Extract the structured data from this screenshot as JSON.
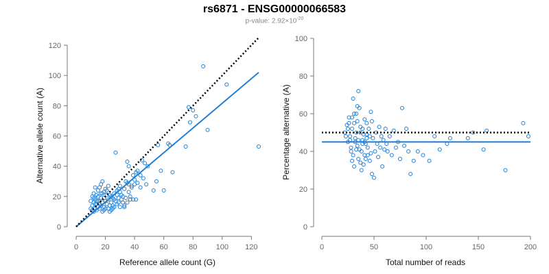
{
  "title": "rs6871 - ENSG00000066583",
  "subtitle": {
    "prefix": "p-value: 2.92×10",
    "exponent": "-20"
  },
  "chart_data": [
    {
      "type": "scatter",
      "xlabel": "Reference allele count (G)",
      "ylabel": "Alternative allele count (A)",
      "xlim": [
        0,
        125
      ],
      "ylim": [
        0,
        120
      ],
      "xticks": [
        0,
        20,
        40,
        60,
        80,
        100,
        120
      ],
      "yticks": [
        0,
        20,
        40,
        60,
        80,
        100,
        120
      ],
      "point_color": "#1f7fd6",
      "fit_line": {
        "x": [
          0,
          125
        ],
        "y": [
          0,
          102
        ],
        "color": "#1f7fd6"
      },
      "reference_line": {
        "x": [
          0,
          125
        ],
        "y": [
          0,
          125
        ],
        "style": "dotted",
        "color": "#000000"
      },
      "points": [
        [
          10,
          12
        ],
        [
          11,
          14
        ],
        [
          12,
          10
        ],
        [
          12,
          16
        ],
        [
          13,
          12
        ],
        [
          13,
          18
        ],
        [
          14,
          11
        ],
        [
          14,
          15
        ],
        [
          15,
          13
        ],
        [
          15,
          20
        ],
        [
          16,
          12
        ],
        [
          16,
          17
        ],
        [
          17,
          14
        ],
        [
          17,
          22
        ],
        [
          18,
          10
        ],
        [
          18,
          16
        ],
        [
          19,
          13
        ],
        [
          19,
          19
        ],
        [
          20,
          12
        ],
        [
          20,
          17
        ],
        [
          21,
          15
        ],
        [
          21,
          24
        ],
        [
          22,
          12
        ],
        [
          22,
          18
        ],
        [
          23,
          14
        ],
        [
          23,
          21
        ],
        [
          24,
          16
        ],
        [
          24,
          11
        ],
        [
          25,
          19
        ],
        [
          25,
          14
        ],
        [
          26,
          22
        ],
        [
          26,
          13
        ],
        [
          27,
          17
        ],
        [
          28,
          24
        ],
        [
          28,
          15
        ],
        [
          29,
          19
        ],
        [
          30,
          27
        ],
        [
          30,
          13
        ],
        [
          31,
          21
        ],
        [
          32,
          16
        ],
        [
          33,
          25
        ],
        [
          34,
          19
        ],
        [
          35,
          29
        ],
        [
          36,
          23
        ],
        [
          37,
          18
        ],
        [
          38,
          26
        ],
        [
          39,
          34
        ],
        [
          40,
          31
        ],
        [
          41,
          36
        ],
        [
          42,
          29
        ],
        [
          44,
          26
        ],
        [
          46,
          32
        ],
        [
          48,
          28
        ],
        [
          53,
          24
        ],
        [
          55,
          30
        ],
        [
          56,
          54
        ],
        [
          58,
          37
        ],
        [
          60,
          24
        ],
        [
          63,
          55
        ],
        [
          64,
          54
        ],
        [
          66,
          36
        ],
        [
          75,
          53
        ],
        [
          77,
          79
        ],
        [
          78,
          69
        ],
        [
          80,
          77
        ],
        [
          82,
          73
        ],
        [
          87,
          106
        ],
        [
          90,
          64
        ],
        [
          103,
          94
        ],
        [
          125,
          53
        ],
        [
          10,
          17
        ],
        [
          11,
          20
        ],
        [
          12,
          22
        ],
        [
          13,
          26
        ],
        [
          14,
          21
        ],
        [
          15,
          24
        ],
        [
          16,
          26
        ],
        [
          17,
          28
        ],
        [
          18,
          30
        ],
        [
          12,
          19
        ],
        [
          14,
          17
        ],
        [
          16,
          15
        ],
        [
          18,
          22
        ],
        [
          20,
          25
        ],
        [
          22,
          27
        ],
        [
          24,
          20
        ],
        [
          26,
          18
        ],
        [
          28,
          21
        ],
        [
          30,
          23
        ],
        [
          32,
          20
        ],
        [
          34,
          30
        ],
        [
          36,
          28
        ],
        [
          38,
          27
        ],
        [
          40,
          28
        ],
        [
          42,
          37
        ],
        [
          45,
          44
        ],
        [
          47,
          42
        ],
        [
          49,
          40
        ],
        [
          35,
          43
        ],
        [
          27,
          49
        ],
        [
          21,
          21
        ],
        [
          19,
          23
        ],
        [
          17,
          19
        ],
        [
          15,
          17
        ],
        [
          13,
          15
        ],
        [
          11,
          11
        ],
        [
          19,
          11
        ],
        [
          23,
          10
        ],
        [
          25,
          12
        ],
        [
          29,
          16
        ],
        [
          31,
          18
        ],
        [
          33,
          14
        ],
        [
          35,
          16
        ],
        [
          37,
          20
        ],
        [
          39,
          18
        ],
        [
          41,
          18
        ],
        [
          44,
          34
        ],
        [
          36,
          40
        ],
        [
          33,
          13
        ],
        [
          29,
          25
        ]
      ]
    },
    {
      "type": "scatter",
      "xlabel": "Total number of reads",
      "ylabel": "Percentage alternative (A)",
      "xlim": [
        0,
        200
      ],
      "ylim": [
        0,
        100
      ],
      "xticks": [
        0,
        50,
        100,
        150,
        200
      ],
      "yticks": [
        0,
        20,
        40,
        60,
        80,
        100
      ],
      "point_color": "#1f7fd6",
      "fit_line": {
        "x": [
          0,
          200
        ],
        "y": [
          45,
          45
        ],
        "color": "#1f7fd6"
      },
      "reference_line": {
        "x": [
          0,
          200
        ],
        "y": [
          50,
          50
        ],
        "style": "dotted",
        "color": "#000000"
      },
      "points": [
        [
          22,
          50
        ],
        [
          24,
          54
        ],
        [
          25,
          45
        ],
        [
          26,
          58
        ],
        [
          27,
          48
        ],
        [
          28,
          42
        ],
        [
          29,
          52
        ],
        [
          30,
          38
        ],
        [
          31,
          55
        ],
        [
          32,
          47
        ],
        [
          33,
          60
        ],
        [
          34,
          43
        ],
        [
          35,
          36
        ],
        [
          36,
          63
        ],
        [
          37,
          50
        ],
        [
          38,
          40
        ],
        [
          39,
          46
        ],
        [
          40,
          33
        ],
        [
          41,
          57
        ],
        [
          42,
          44
        ],
        [
          43,
          49
        ],
        [
          44,
          38
        ],
        [
          45,
          52
        ],
        [
          46,
          35
        ],
        [
          47,
          61
        ],
        [
          48,
          28
        ],
        [
          49,
          47
        ],
        [
          50,
          26
        ],
        [
          51,
          40
        ],
        [
          52,
          50
        ],
        [
          53,
          44
        ],
        [
          54,
          37
        ],
        [
          55,
          53
        ],
        [
          56,
          42
        ],
        [
          57,
          48
        ],
        [
          58,
          32
        ],
        [
          59,
          46
        ],
        [
          60,
          41
        ],
        [
          61,
          52
        ],
        [
          62,
          44
        ],
        [
          63,
          40
        ],
        [
          65,
          48
        ],
        [
          67,
          38
        ],
        [
          69,
          51
        ],
        [
          71,
          42
        ],
        [
          73,
          45
        ],
        [
          75,
          36
        ],
        [
          77,
          63
        ],
        [
          79,
          43
        ],
        [
          81,
          52
        ],
        [
          83,
          40
        ],
        [
          85,
          28
        ],
        [
          88,
          35
        ],
        [
          92,
          40
        ],
        [
          97,
          38
        ],
        [
          103,
          35
        ],
        [
          108,
          48
        ],
        [
          113,
          41
        ],
        [
          120,
          44
        ],
        [
          123,
          47
        ],
        [
          140,
          47
        ],
        [
          145,
          50
        ],
        [
          155,
          41
        ],
        [
          158,
          51
        ],
        [
          176,
          30
        ],
        [
          193,
          55
        ],
        [
          198,
          48
        ],
        [
          35,
          72
        ],
        [
          34,
          64
        ],
        [
          30,
          68
        ],
        [
          26,
          55
        ],
        [
          27,
          46
        ],
        [
          28,
          40
        ],
        [
          29,
          35
        ],
        [
          31,
          32
        ],
        [
          32,
          45
        ],
        [
          33,
          50
        ],
        [
          34,
          56
        ],
        [
          36,
          41
        ],
        [
          37,
          34
        ],
        [
          38,
          30
        ],
        [
          39,
          52
        ],
        [
          40,
          49
        ],
        [
          41,
          45
        ],
        [
          42,
          36
        ],
        [
          43,
          55
        ],
        [
          44,
          42
        ],
        [
          46,
          48
        ],
        [
          47,
          39
        ],
        [
          48,
          56
        ],
        [
          23,
          48
        ],
        [
          25,
          52
        ],
        [
          29,
          58
        ],
        [
          31,
          60
        ],
        [
          33,
          41
        ],
        [
          35,
          46
        ],
        [
          37,
          53
        ],
        [
          39,
          44
        ],
        [
          41,
          38
        ],
        [
          43,
          47
        ]
      ]
    }
  ]
}
